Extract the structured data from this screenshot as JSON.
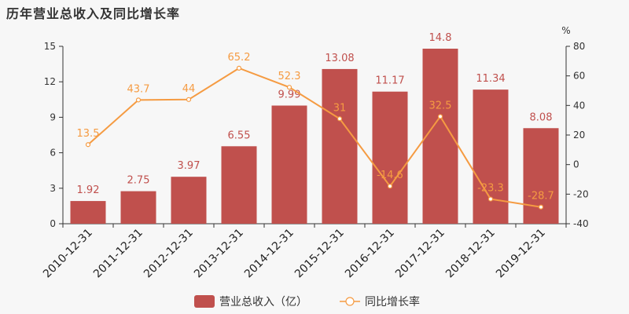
{
  "header": {
    "title": "历年营业总收入及同比增长率"
  },
  "chart_data": {
    "type": "bar",
    "categories": [
      "2010-12-31",
      "2011-12-31",
      "2012-12-31",
      "2013-12-31",
      "2014-12-31",
      "2015-12-31",
      "2016-12-31",
      "2017-12-31",
      "2018-12-31",
      "2019-12-31"
    ],
    "series": [
      {
        "name": "营业总收入（亿）",
        "type": "bar",
        "axis": "left",
        "values": [
          1.92,
          2.75,
          3.97,
          6.55,
          9.99,
          13.08,
          11.17,
          14.8,
          11.34,
          8.08
        ],
        "labels": [
          "1.92",
          "2.75",
          "3.97",
          "6.55",
          "9.99",
          "13.08",
          "11.17",
          "14.8",
          "11.34",
          "8.08"
        ]
      },
      {
        "name": "同比增长率",
        "type": "line",
        "axis": "right",
        "values": [
          13.5,
          43.7,
          44,
          65.2,
          52.3,
          31,
          -14.6,
          32.5,
          -23.3,
          -28.7
        ],
        "labels": [
          "13.5",
          "43.7",
          "44",
          "65.2",
          "52.3",
          "31",
          "-14.6",
          "32.5",
          "-23.3",
          "-28.7"
        ]
      }
    ],
    "y_left": {
      "ylim": [
        0,
        15
      ],
      "ticks": [
        0,
        3,
        6,
        9,
        12,
        15
      ]
    },
    "y_right": {
      "ylim": [
        -40,
        80
      ],
      "ticks": [
        -40,
        -20,
        0,
        20,
        40,
        60,
        80
      ],
      "unit": "%"
    },
    "legend_position": "bottom-center",
    "colors": {
      "bar": "#c0504d",
      "bar_label": "#c0504d",
      "line": "#f59b42",
      "line_label": "#f59b42"
    }
  }
}
